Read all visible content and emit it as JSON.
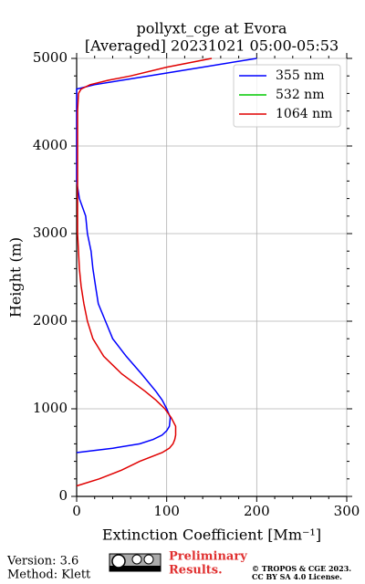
{
  "chart_data": {
    "type": "line",
    "title": "pollyxt_cge at Evora",
    "subtitle": "[Averaged] 20231021 05:00-05:53",
    "xlabel": "Extinction Coefficient [Mm⁻¹]",
    "ylabel": "Height (m)",
    "y": [
      120,
      200,
      300,
      400,
      500,
      550,
      600,
      650,
      700,
      750,
      800,
      900,
      1000,
      1100,
      1200,
      1400,
      1600,
      1800,
      2000,
      2200,
      2400,
      2600,
      2800,
      3000,
      3200,
      3400,
      3600,
      3800,
      4000,
      4200,
      4400,
      4600,
      4650,
      4700,
      4750,
      4800,
      4900,
      5000
    ],
    "series": [
      {
        "name": "355 nm",
        "color": "#0000ff",
        "values": [
          null,
          null,
          null,
          null,
          0,
          40,
          70,
          85,
          95,
          100,
          103,
          104,
          100,
          95,
          88,
          72,
          55,
          40,
          32,
          24,
          21,
          18,
          16,
          12,
          10,
          3,
          0,
          0,
          0,
          0,
          0,
          0,
          0,
          20,
          50,
          80,
          140,
          200
        ]
      },
      {
        "name": "532 nm",
        "color": "#00c800",
        "values": [
          null,
          null,
          null,
          null,
          null,
          null,
          null,
          null,
          null,
          null,
          null,
          null,
          null,
          null,
          null,
          null,
          null,
          null,
          null,
          null,
          null,
          null,
          null,
          null,
          null,
          null,
          null,
          null,
          null,
          null,
          null,
          null,
          null,
          null,
          null,
          null,
          null,
          null
        ]
      },
      {
        "name": "1064 nm",
        "color": "#e00000",
        "values": [
          0,
          25,
          50,
          70,
          95,
          103,
          107,
          109,
          110,
          110,
          110,
          105,
          98,
          88,
          76,
          50,
          30,
          18,
          12,
          8,
          5,
          3,
          2,
          1,
          1,
          1,
          1,
          1,
          1,
          1,
          1,
          2,
          5,
          15,
          35,
          60,
          100,
          150
        ]
      }
    ],
    "xlim": [
      0,
      300
    ],
    "xticks": [
      0,
      100,
      200,
      300
    ],
    "ylim": [
      0,
      5000
    ],
    "yticks": [
      0,
      1000,
      2000,
      3000,
      4000,
      5000
    ],
    "grid": true,
    "legend": "upper right"
  },
  "footer": {
    "version": "Version: 3.6",
    "method": "Method: Klett",
    "preliminary": [
      "Preliminary",
      "Results."
    ],
    "copyright": [
      "© TROPOS & CGE 2023.",
      "CC BY SA 4.0 License."
    ]
  }
}
